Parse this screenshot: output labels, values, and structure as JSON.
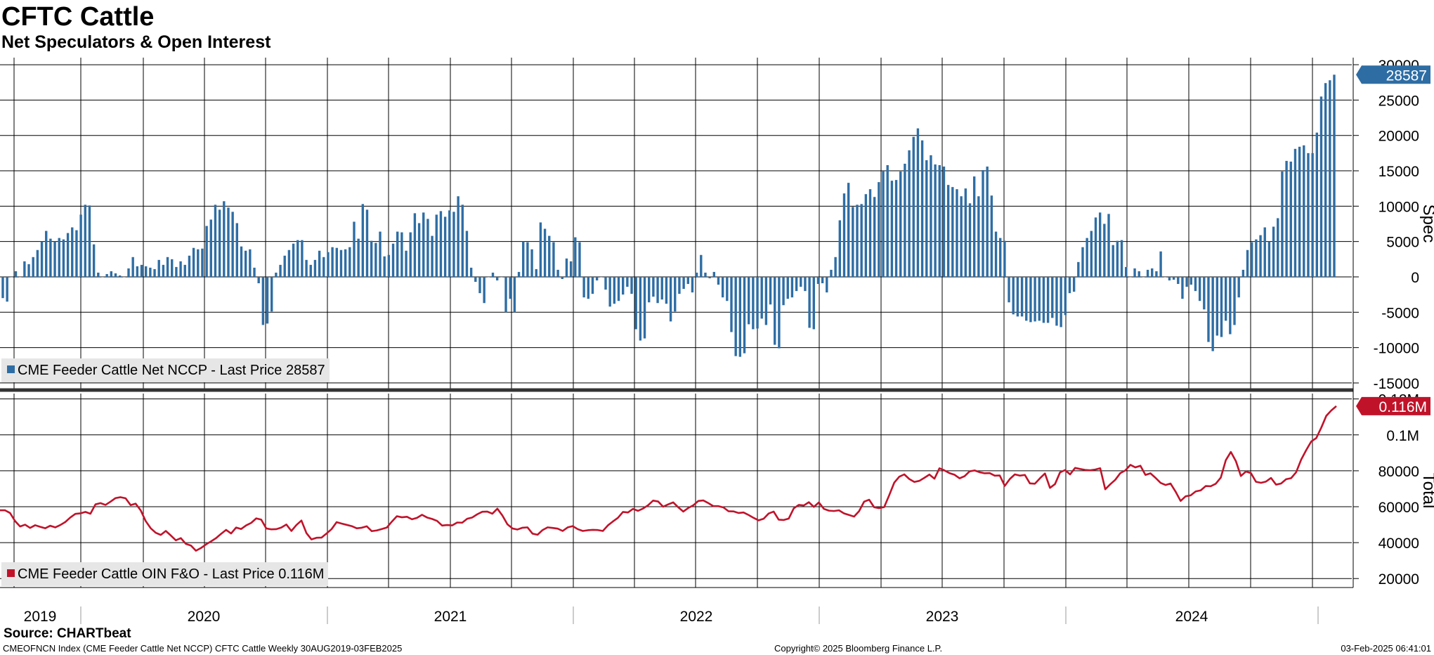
{
  "header": {
    "title": "CFTC Cattle",
    "subtitle": "Net Speculators & Open Interest"
  },
  "footer": {
    "source": "Source: CHARTbeat",
    "left": "CMEOFNCN Index (CME Feeder Cattle Net NCCP) CFTC Cattle  Weekly 30AUG2019-03FEB2025",
    "center": "Copyright© 2025 Bloomberg Finance L.P.",
    "right": "03-Feb-2025 06:41:01"
  },
  "colors": {
    "spec_bar": "#2e6da4",
    "total_line": "#c0132a",
    "grid": "#000000"
  },
  "legend": {
    "top": "CME Feeder Cattle Net NCCP - Last Price 28587",
    "bottom": "CME Feeder Cattle OIN F&O - Last Price 0.116M"
  },
  "chart_data": [
    {
      "type": "bar",
      "name": "Spec",
      "ylabel": "Spec",
      "ylim": [
        -16000,
        31000
      ],
      "yticks": [
        "30000",
        "25000",
        "20000",
        "15000",
        "10000",
        "5000",
        "0",
        "-5000",
        "-10000",
        "-15000"
      ],
      "ytick_values": [
        30000,
        25000,
        20000,
        15000,
        10000,
        5000,
        0,
        -5000,
        -10000,
        -15000
      ],
      "last_label": "28587",
      "series": [
        {
          "name": "CME Feeder Cattle Net NCCP",
          "values": [
            -3000,
            -3500,
            0,
            800,
            0,
            2200,
            1800,
            2800,
            3800,
            5000,
            6500,
            5400,
            5000,
            5500,
            5300,
            6200,
            7000,
            6600,
            8800,
            10200,
            10100,
            4600,
            600,
            0,
            400,
            800,
            500,
            200,
            0,
            1200,
            2800,
            1500,
            1700,
            1500,
            1300,
            1100,
            2400,
            1700,
            2800,
            2500,
            1400,
            2200,
            1700,
            3000,
            4100,
            3900,
            4000,
            7200,
            8100,
            10200,
            9500,
            10700,
            9800,
            9200,
            7600,
            4300,
            3700,
            3900,
            1300,
            -900,
            -6800,
            -6600,
            -4900,
            600,
            1700,
            3000,
            3800,
            4700,
            5200,
            5200,
            2400,
            1700,
            2400,
            3700,
            2800,
            3500,
            4200,
            4100,
            3800,
            3900,
            4200,
            7800,
            5400,
            10300,
            9500,
            5100,
            4800,
            6400,
            2900,
            3100,
            4700,
            6400,
            6300,
            3700,
            6300,
            9000,
            7600,
            9100,
            8200,
            5800,
            8800,
            9300,
            8500,
            9400,
            9200,
            11400,
            10200,
            6500,
            1300,
            -700,
            -2300,
            -3700,
            0,
            600,
            -500,
            0,
            -5000,
            -3100,
            -5000,
            700,
            5000,
            4900,
            3900,
            1100,
            7700,
            6800,
            5800,
            4900,
            1000,
            -300,
            2600,
            2200,
            5600,
            4900,
            -2900,
            -3100,
            -2400,
            -500,
            0,
            -1800,
            -4200,
            -3800,
            -3400,
            -2500,
            -1400,
            -2400,
            -7400,
            -9000,
            -8700,
            -3600,
            -2800,
            -3700,
            -3200,
            -3800,
            -6300,
            -4900,
            -2400,
            -1700,
            -1000,
            -2200,
            600,
            3100,
            600,
            -200,
            700,
            -1100,
            -2900,
            -3400,
            -7800,
            -11200,
            -11300,
            -10800,
            -6700,
            -7400,
            -7300,
            -5900,
            -6800,
            -3900,
            -9600,
            -10100,
            -4000,
            -3100,
            -2900,
            -2000,
            -1400,
            -2000,
            -7200,
            -7400,
            -1000,
            -900,
            -2200,
            1000,
            2800,
            8000,
            11800,
            13300,
            9900,
            10200,
            10300,
            11700,
            12400,
            11300,
            13400,
            15000,
            15800,
            13600,
            13700,
            14900,
            16000,
            17900,
            19800,
            21000,
            19300,
            16500,
            17200,
            15900,
            15800,
            15600,
            13000,
            12700,
            12400,
            11400,
            12500,
            10400,
            14200,
            11400,
            15100,
            15600,
            11500,
            6400,
            5500,
            5100,
            -3600,
            -5300,
            -5600,
            -5600,
            -6200,
            -6400,
            -6300,
            -6200,
            -6500,
            -6500,
            -5800,
            -6900,
            -7100,
            -5400,
            -2300,
            -2100,
            2100,
            4200,
            5500,
            6500,
            8400,
            9100,
            7500,
            8900,
            4500,
            5100,
            5200,
            1400,
            0,
            1200,
            800,
            0,
            1000,
            1200,
            800,
            3600,
            0,
            -500,
            -400,
            -1000,
            -3100,
            -1400,
            -1100,
            -2000,
            -3400,
            -4600,
            -9200,
            -10500,
            -8300,
            -8500,
            -6200,
            -8100,
            -6800,
            -2900,
            1000,
            3800,
            4900,
            5300,
            5900,
            7000,
            5000,
            7100,
            8300,
            14900,
            16400,
            16300,
            18100,
            18400,
            18600,
            17500,
            17500,
            20400,
            25500,
            27400,
            27800,
            28587
          ]
        }
      ]
    },
    {
      "type": "line",
      "name": "Total",
      "ylabel": "Total",
      "ylim": [
        15000,
        123000
      ],
      "yticks": [
        "0.12M",
        "0.1M",
        "80000",
        "60000",
        "40000",
        "20000"
      ],
      "ytick_values": [
        120000,
        100000,
        80000,
        60000,
        40000,
        20000
      ],
      "last_label": "0.116M",
      "series": [
        {
          "name": "CME Feeder Cattle OIN F&O",
          "values": [
            58000,
            58000,
            56500,
            52000,
            49000,
            50000,
            48200,
            49700,
            48800,
            48000,
            49400,
            48500,
            49800,
            51500,
            54000,
            56000,
            56300,
            57100,
            56100,
            61300,
            62000,
            61000,
            62800,
            64800,
            65300,
            64700,
            60900,
            61700,
            58000,
            52000,
            48000,
            45500,
            44300,
            46500,
            44000,
            41300,
            42500,
            39300,
            38400,
            35500,
            37000,
            39000,
            40700,
            42500,
            44900,
            47100,
            45100,
            48400,
            47600,
            49600,
            51000,
            53500,
            52800,
            47900,
            47400,
            47500,
            48400,
            50100,
            46500,
            49800,
            52300,
            45300,
            41800,
            42700,
            42800,
            45100,
            47500,
            51400,
            50600,
            49900,
            49200,
            48000,
            48300,
            49100,
            46400,
            46800,
            47600,
            48400,
            51700,
            54700,
            54100,
            54400,
            53000,
            53800,
            55500,
            54000,
            53200,
            52100,
            49500,
            49800,
            49600,
            51200,
            51100,
            53300,
            54000,
            55800,
            57200,
            57300,
            56100,
            58900,
            55100,
            50200,
            47900,
            47300,
            48300,
            48500,
            45000,
            44400,
            47000,
            48500,
            48200,
            47800,
            46500,
            48500,
            49200,
            47500,
            46500,
            46900,
            47100,
            47000,
            46500,
            49600,
            51800,
            53800,
            57100,
            56800,
            58800,
            57700,
            59000,
            60800,
            63400,
            62900,
            60000,
            61300,
            62400,
            59700,
            57300,
            59300,
            60800,
            63200,
            63500,
            62000,
            60300,
            60300,
            59600,
            57500,
            57400,
            56500,
            56800,
            55400,
            53800,
            52400,
            53300,
            56200,
            57300,
            52800,
            52600,
            53400,
            59100,
            61000,
            60700,
            62500,
            59900,
            62400,
            58800,
            57800,
            57600,
            58000,
            56300,
            55400,
            54500,
            57500,
            62800,
            63900,
            59700,
            59200,
            59800,
            66400,
            73400,
            76700,
            78000,
            75400,
            73800,
            74400,
            76100,
            77900,
            75600,
            81400,
            80200,
            78700,
            77800,
            75800,
            77000,
            79700,
            80200,
            79200,
            78600,
            78700,
            77300,
            77400,
            71600,
            75400,
            78000,
            77300,
            77700,
            73000,
            72800,
            75800,
            78500,
            70500,
            72600,
            79100,
            80400,
            78000,
            81600,
            81000,
            80500,
            80300,
            80700,
            81400,
            69700,
            72500,
            75000,
            78700,
            80200,
            83300,
            81900,
            82800,
            77700,
            78600,
            76100,
            73300,
            72100,
            72900,
            68400,
            63200,
            65800,
            66300,
            68500,
            69100,
            71500,
            71400,
            72800,
            76200,
            85900,
            90500,
            85400,
            77100,
            79600,
            78700,
            73900,
            73300,
            74000,
            76000,
            72300,
            72900,
            75300,
            75900,
            79200,
            86200,
            91500,
            96300,
            98200,
            104000,
            110600,
            113600,
            116000
          ]
        }
      ]
    }
  ],
  "x_axis": {
    "labels": [
      "2019",
      "2020",
      "2021",
      "2022",
      "2023",
      "2024"
    ],
    "start": "30AUG2019",
    "end": "03FEB2025"
  }
}
